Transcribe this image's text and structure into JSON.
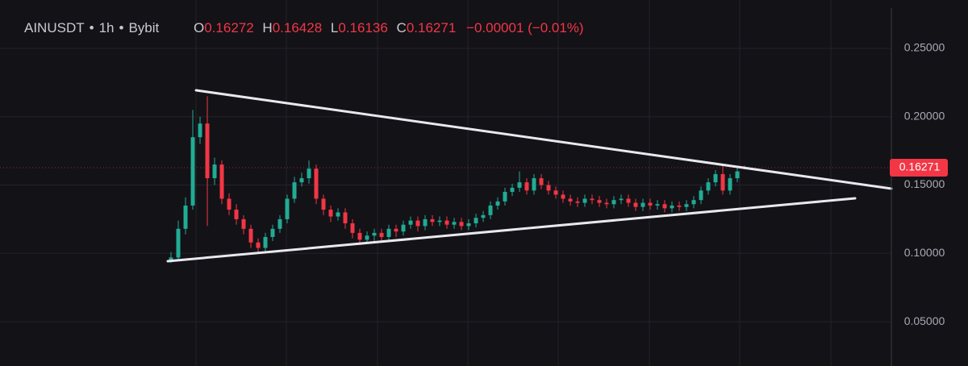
{
  "header": {
    "symbol": "AINUSDT",
    "interval": "1h",
    "exchange": "Bybit",
    "ohlc": [
      {
        "key": "O",
        "value": "0.16272"
      },
      {
        "key": "H",
        "value": "0.16428"
      },
      {
        "key": "L",
        "value": "0.16136"
      },
      {
        "key": "C",
        "value": "0.16271"
      }
    ],
    "change": "−0.00001 (−0.01%)"
  },
  "chart_data": {
    "type": "candlestick",
    "up_color": "#22ab94",
    "down_color": "#f23645",
    "ylim": [
      0.0176,
      0.2854
    ],
    "yticks": [
      {
        "value": 0.05,
        "label": "0.05000"
      },
      {
        "value": 0.1,
        "label": "0.10000"
      },
      {
        "value": 0.15,
        "label": "0.15000"
      },
      {
        "value": 0.2,
        "label": "0.20000"
      },
      {
        "value": 0.25,
        "label": "0.25000"
      }
    ],
    "grid": true,
    "last_price": 0.16271,
    "open": [
      0.094,
      0.097,
      0.118,
      0.135,
      0.185,
      0.195,
      0.155,
      0.165,
      0.14,
      0.132,
      0.125,
      0.118,
      0.108,
      0.104,
      0.112,
      0.118,
      0.125,
      0.14,
      0.152,
      0.155,
      0.162,
      0.14,
      0.132,
      0.127,
      0.13,
      0.122,
      0.115,
      0.11,
      0.113,
      0.115,
      0.112,
      0.118,
      0.116,
      0.121,
      0.124,
      0.12,
      0.125,
      0.123,
      0.124,
      0.121,
      0.123,
      0.12,
      0.122,
      0.126,
      0.128,
      0.135,
      0.138,
      0.145,
      0.148,
      0.152,
      0.146,
      0.155,
      0.15,
      0.146,
      0.143,
      0.14,
      0.138,
      0.137,
      0.14,
      0.139,
      0.137,
      0.136,
      0.139,
      0.14,
      0.137,
      0.134,
      0.137,
      0.135,
      0.136,
      0.133,
      0.135,
      0.134,
      0.136,
      0.139,
      0.146,
      0.152,
      0.158,
      0.146,
      0.155,
      0.16272
    ],
    "high": [
      0.101,
      0.124,
      0.141,
      0.205,
      0.2,
      0.215,
      0.17,
      0.168,
      0.144,
      0.136,
      0.128,
      0.121,
      0.111,
      0.115,
      0.121,
      0.128,
      0.143,
      0.156,
      0.159,
      0.168,
      0.165,
      0.143,
      0.135,
      0.133,
      0.133,
      0.125,
      0.118,
      0.116,
      0.118,
      0.118,
      0.121,
      0.121,
      0.124,
      0.127,
      0.127,
      0.128,
      0.128,
      0.127,
      0.127,
      0.126,
      0.126,
      0.125,
      0.129,
      0.131,
      0.138,
      0.141,
      0.148,
      0.151,
      0.16,
      0.155,
      0.158,
      0.158,
      0.153,
      0.149,
      0.146,
      0.143,
      0.141,
      0.143,
      0.143,
      0.142,
      0.14,
      0.142,
      0.143,
      0.143,
      0.14,
      0.14,
      0.14,
      0.139,
      0.139,
      0.138,
      0.138,
      0.139,
      0.142,
      0.149,
      0.155,
      0.161,
      0.165,
      0.158,
      0.163,
      0.16428
    ],
    "low": [
      0.093,
      0.095,
      0.114,
      0.132,
      0.18,
      0.12,
      0.15,
      0.136,
      0.128,
      0.121,
      0.114,
      0.104,
      0.1,
      0.101,
      0.109,
      0.115,
      0.122,
      0.137,
      0.149,
      0.151,
      0.136,
      0.128,
      0.123,
      0.124,
      0.118,
      0.111,
      0.106,
      0.107,
      0.109,
      0.108,
      0.109,
      0.112,
      0.113,
      0.118,
      0.116,
      0.117,
      0.12,
      0.12,
      0.118,
      0.118,
      0.117,
      0.117,
      0.119,
      0.123,
      0.125,
      0.132,
      0.135,
      0.142,
      0.145,
      0.143,
      0.143,
      0.147,
      0.143,
      0.14,
      0.137,
      0.135,
      0.134,
      0.134,
      0.136,
      0.134,
      0.133,
      0.133,
      0.136,
      0.134,
      0.131,
      0.131,
      0.132,
      0.132,
      0.13,
      0.13,
      0.131,
      0.131,
      0.133,
      0.136,
      0.143,
      0.149,
      0.143,
      0.143,
      0.152,
      0.16136
    ],
    "close": [
      0.097,
      0.118,
      0.135,
      0.185,
      0.195,
      0.155,
      0.165,
      0.14,
      0.132,
      0.125,
      0.118,
      0.108,
      0.104,
      0.112,
      0.118,
      0.125,
      0.14,
      0.152,
      0.155,
      0.162,
      0.14,
      0.132,
      0.127,
      0.13,
      0.122,
      0.115,
      0.11,
      0.113,
      0.115,
      0.112,
      0.118,
      0.116,
      0.121,
      0.124,
      0.12,
      0.125,
      0.123,
      0.124,
      0.121,
      0.123,
      0.12,
      0.122,
      0.126,
      0.128,
      0.135,
      0.138,
      0.145,
      0.148,
      0.152,
      0.146,
      0.155,
      0.15,
      0.146,
      0.143,
      0.14,
      0.138,
      0.137,
      0.14,
      0.139,
      0.137,
      0.136,
      0.139,
      0.14,
      0.137,
      0.134,
      0.137,
      0.135,
      0.136,
      0.133,
      0.135,
      0.134,
      0.136,
      0.139,
      0.146,
      0.152,
      0.158,
      0.146,
      0.155,
      0.16,
      0.16271
    ]
  }
}
